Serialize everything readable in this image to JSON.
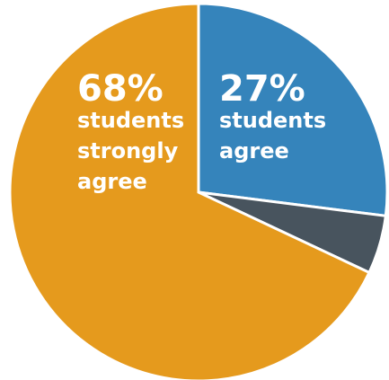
{
  "chart_data": {
    "type": "pie",
    "slices": [
      {
        "value": 27,
        "color": "#3584bb",
        "pct_label": "27%",
        "label_lines": [
          "students",
          "agree"
        ]
      },
      {
        "value": 5,
        "color": "#48545e",
        "pct_label": "",
        "label_lines": []
      },
      {
        "value": 68,
        "color": "#e59a1d",
        "pct_label": "68%",
        "label_lines": [
          "students",
          "strongly",
          "agree"
        ]
      }
    ],
    "start": "12 o'clock",
    "direction": "clockwise"
  }
}
